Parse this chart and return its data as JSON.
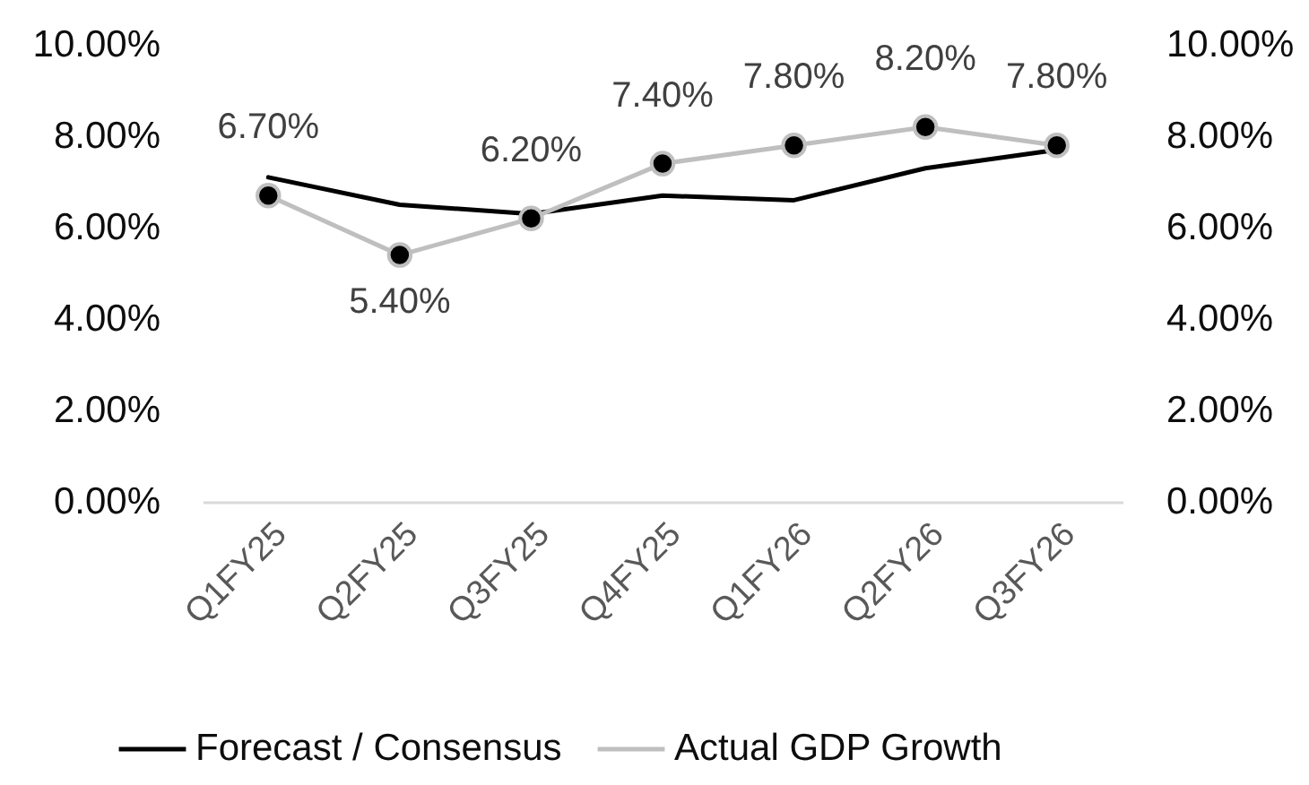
{
  "chart_data": {
    "type": "line",
    "categories": [
      "Q1FY25",
      "Q2FY25",
      "Q3FY25",
      "Q4FY25",
      "Q1FY26",
      "Q2FY26",
      "Q3FY26"
    ],
    "series": [
      {
        "name": "Forecast / Consensus",
        "color": "#000000",
        "values": [
          7.1,
          6.5,
          6.3,
          6.7,
          6.6,
          7.3,
          7.7
        ],
        "marker": "none"
      },
      {
        "name": "Actual GDP Growth",
        "color": "#bfbfbf",
        "values": [
          6.7,
          5.4,
          6.2,
          7.4,
          7.8,
          8.2,
          7.8
        ],
        "marker": "circle",
        "value_labels": [
          "6.70%",
          "5.40%",
          "6.20%",
          "7.40%",
          "7.80%",
          "8.20%",
          "7.80%"
        ]
      }
    ],
    "ylim": [
      0,
      10
    ],
    "yticks": [
      {
        "value": 0,
        "label": "0.00%"
      },
      {
        "value": 2,
        "label": "2.00%"
      },
      {
        "value": 4,
        "label": "4.00%"
      },
      {
        "value": 6,
        "label": "6.00%"
      },
      {
        "value": 8,
        "label": "8.00%"
      },
      {
        "value": 10,
        "label": "10.00%"
      }
    ],
    "y2lim": [
      0,
      10
    ],
    "y2ticks": [
      {
        "value": 0,
        "label": "0.00%"
      },
      {
        "value": 2,
        "label": "2.00%"
      },
      {
        "value": 4,
        "label": "4.00%"
      },
      {
        "value": 6,
        "label": "6.00%"
      },
      {
        "value": 8,
        "label": "8.00%"
      },
      {
        "value": 10,
        "label": "10.00%"
      }
    ],
    "legend": "bottom",
    "line_style": "solid"
  }
}
